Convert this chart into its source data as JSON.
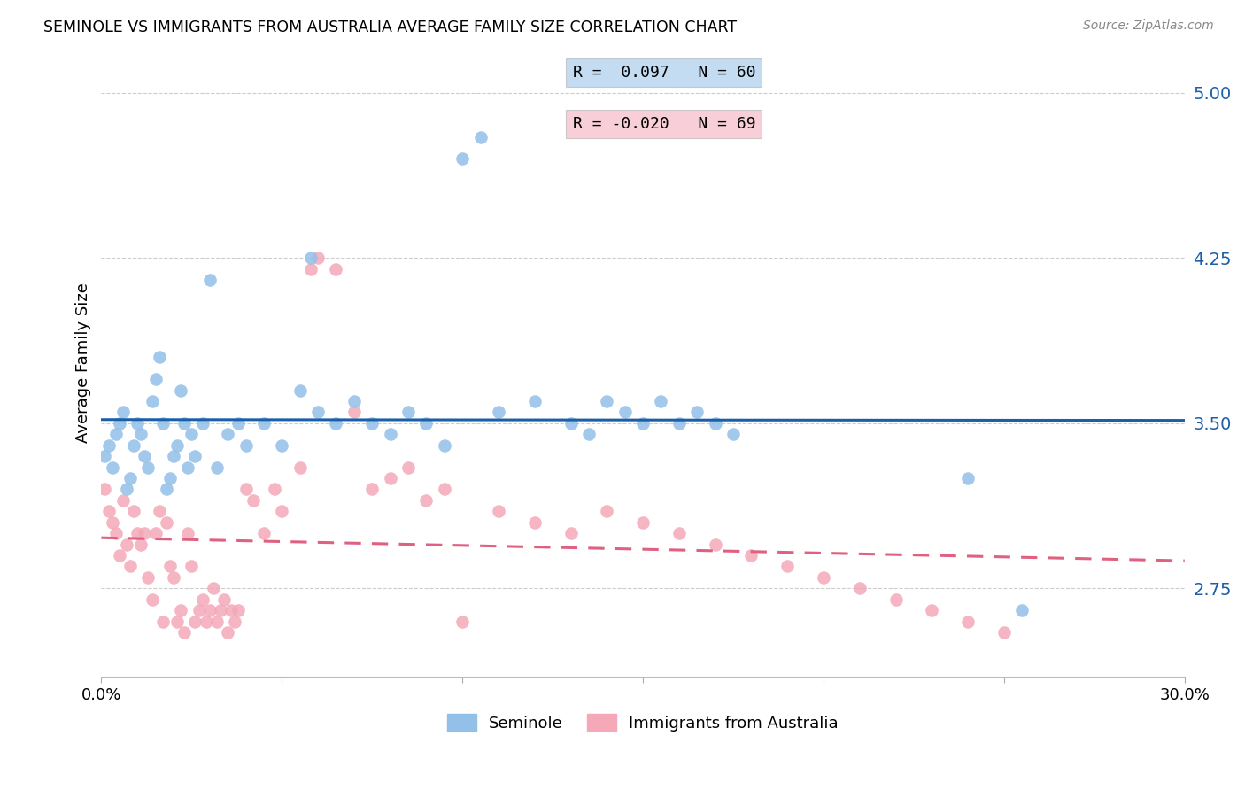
{
  "title": "SEMINOLE VS IMMIGRANTS FROM AUSTRALIA AVERAGE FAMILY SIZE CORRELATION CHART",
  "source": "Source: ZipAtlas.com",
  "ylabel": "Average Family Size",
  "yticks": [
    2.75,
    3.5,
    4.25,
    5.0
  ],
  "ylim": [
    2.35,
    5.2
  ],
  "xlim": [
    0.0,
    0.3
  ],
  "xticks": [
    0.0,
    0.05,
    0.1,
    0.15,
    0.2,
    0.25,
    0.3
  ],
  "xtick_labels": [
    "0.0%",
    "",
    "",
    "",
    "",
    "",
    "30.0%"
  ],
  "blue_color": "#92C0E8",
  "pink_color": "#F4A8B8",
  "line_blue": "#1A5FA8",
  "line_pink": "#E06080",
  "grid_color": "#CCCCCC",
  "seminole_x": [
    0.001,
    0.002,
    0.003,
    0.004,
    0.005,
    0.006,
    0.007,
    0.008,
    0.009,
    0.01,
    0.011,
    0.012,
    0.013,
    0.014,
    0.015,
    0.016,
    0.017,
    0.018,
    0.019,
    0.02,
    0.021,
    0.022,
    0.023,
    0.024,
    0.025,
    0.026,
    0.028,
    0.03,
    0.032,
    0.035,
    0.038,
    0.04,
    0.045,
    0.05,
    0.055,
    0.058,
    0.06,
    0.065,
    0.07,
    0.075,
    0.08,
    0.085,
    0.09,
    0.095,
    0.1,
    0.105,
    0.11,
    0.12,
    0.13,
    0.135,
    0.14,
    0.145,
    0.15,
    0.155,
    0.16,
    0.165,
    0.17,
    0.175,
    0.24,
    0.255
  ],
  "seminole_y": [
    3.35,
    3.4,
    3.3,
    3.45,
    3.5,
    3.55,
    3.2,
    3.25,
    3.4,
    3.5,
    3.45,
    3.35,
    3.3,
    3.6,
    3.7,
    3.8,
    3.5,
    3.2,
    3.25,
    3.35,
    3.4,
    3.65,
    3.5,
    3.3,
    3.45,
    3.35,
    3.5,
    4.15,
    3.3,
    3.45,
    3.5,
    3.4,
    3.5,
    3.4,
    3.65,
    4.25,
    3.55,
    3.5,
    3.6,
    3.5,
    3.45,
    3.55,
    3.5,
    3.4,
    4.7,
    4.8,
    3.55,
    3.6,
    3.5,
    3.45,
    3.6,
    3.55,
    3.5,
    3.6,
    3.5,
    3.55,
    3.5,
    3.45,
    3.25,
    2.65
  ],
  "australia_x": [
    0.001,
    0.002,
    0.003,
    0.004,
    0.005,
    0.006,
    0.007,
    0.008,
    0.009,
    0.01,
    0.011,
    0.012,
    0.013,
    0.014,
    0.015,
    0.016,
    0.017,
    0.018,
    0.019,
    0.02,
    0.021,
    0.022,
    0.023,
    0.024,
    0.025,
    0.026,
    0.027,
    0.028,
    0.029,
    0.03,
    0.031,
    0.032,
    0.033,
    0.034,
    0.035,
    0.036,
    0.037,
    0.038,
    0.04,
    0.042,
    0.045,
    0.048,
    0.05,
    0.055,
    0.058,
    0.06,
    0.065,
    0.07,
    0.075,
    0.08,
    0.085,
    0.09,
    0.095,
    0.1,
    0.11,
    0.12,
    0.13,
    0.14,
    0.15,
    0.16,
    0.17,
    0.18,
    0.19,
    0.2,
    0.21,
    0.22,
    0.23,
    0.24,
    0.25
  ],
  "australia_y": [
    3.2,
    3.1,
    3.05,
    3.0,
    2.9,
    3.15,
    2.95,
    2.85,
    3.1,
    3.0,
    2.95,
    3.0,
    2.8,
    2.7,
    3.0,
    3.1,
    2.6,
    3.05,
    2.85,
    2.8,
    2.6,
    2.65,
    2.55,
    3.0,
    2.85,
    2.6,
    2.65,
    2.7,
    2.6,
    2.65,
    2.75,
    2.6,
    2.65,
    2.7,
    2.55,
    2.65,
    2.6,
    2.65,
    3.2,
    3.15,
    3.0,
    3.2,
    3.1,
    3.3,
    4.2,
    4.25,
    4.2,
    3.55,
    3.2,
    3.25,
    3.3,
    3.15,
    3.2,
    2.6,
    3.1,
    3.05,
    3.0,
    3.1,
    3.05,
    3.0,
    2.95,
    2.9,
    2.85,
    2.8,
    2.75,
    2.7,
    2.65,
    2.6,
    2.55
  ]
}
